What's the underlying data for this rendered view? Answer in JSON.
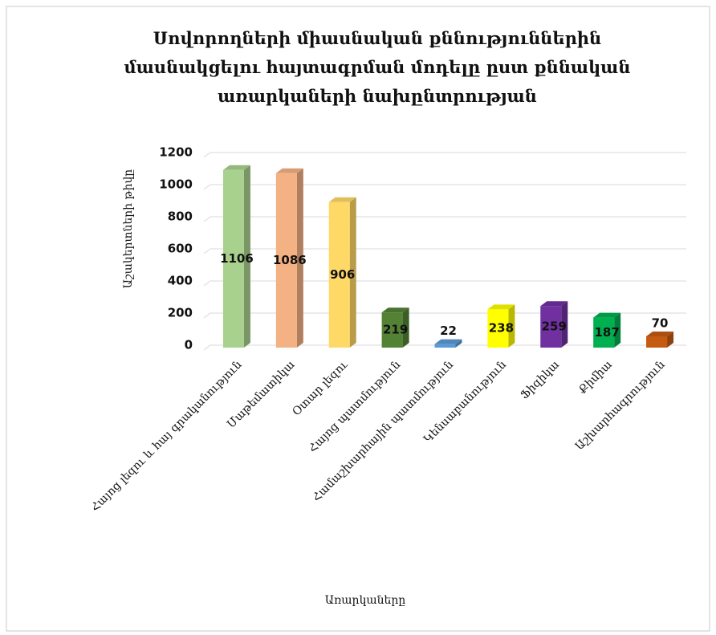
{
  "chart_data": {
    "type": "bar3d",
    "title": "Սովորողների միասնական քննություններին մասնակցելու հայտագրման մոդելը ըստ քննական առարկաների նախընտրության",
    "y_label": "Աշակերտների թիվը",
    "x_label": "Առարկաները",
    "categories": [
      "Հայոց լեզու և հայ գրականություն",
      "Մաթեմատիկա",
      "Օտար լեզու",
      "Հայոց պատմություն",
      "Համաշխարհային պատմություն",
      "Կենսաբանություն",
      "Ֆիզիկա",
      "Քիմիա",
      "Աշխարհագրություն"
    ],
    "values": [
      1106,
      1086,
      906,
      219,
      22,
      238,
      259,
      187,
      70
    ],
    "colors": [
      "#a9d18e",
      "#f4b183",
      "#ffd966",
      "#548235",
      "#5b9bd5",
      "#ffff00",
      "#7030a0",
      "#00b050",
      "#c55a11"
    ],
    "ylim": [
      0,
      1200
    ],
    "yticks": [
      0,
      200,
      400,
      600,
      800,
      1000,
      1200
    ],
    "grid": true
  }
}
